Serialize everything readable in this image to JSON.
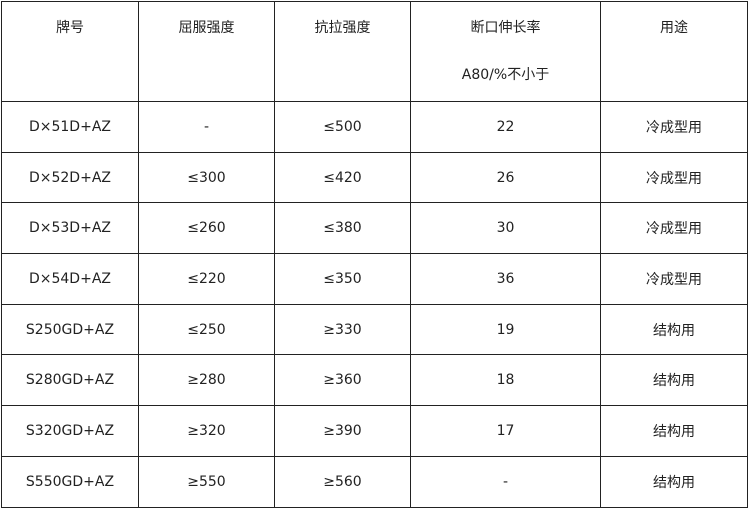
{
  "table": {
    "headers": [
      {
        "line1": "牌号",
        "line2": ""
      },
      {
        "line1": "屈服强度",
        "line2": ""
      },
      {
        "line1": "抗拉强度",
        "line2": ""
      },
      {
        "line1": "断口伸长率",
        "line2": "A80/%不小于"
      },
      {
        "line1": "用途",
        "line2": ""
      }
    ],
    "rows": [
      [
        "D×51D+AZ",
        "-",
        "≤500",
        "22",
        "冷成型用"
      ],
      [
        "D×52D+AZ",
        "≤300",
        "≤420",
        "26",
        "冷成型用"
      ],
      [
        "D×53D+AZ",
        "≤260",
        "≤380",
        "30",
        "冷成型用"
      ],
      [
        "D×54D+AZ",
        "≤220",
        "≤350",
        "36",
        "冷成型用"
      ],
      [
        "S250GD+AZ",
        "≤250",
        "≥330",
        "19",
        "结构用"
      ],
      [
        "S280GD+AZ",
        "≥280",
        "≥360",
        "18",
        "结构用"
      ],
      [
        "S320GD+AZ",
        "≥320",
        "≥390",
        "17",
        "结构用"
      ],
      [
        "S550GD+AZ",
        "≥550",
        "≥560",
        "-",
        "结构用"
      ]
    ]
  }
}
